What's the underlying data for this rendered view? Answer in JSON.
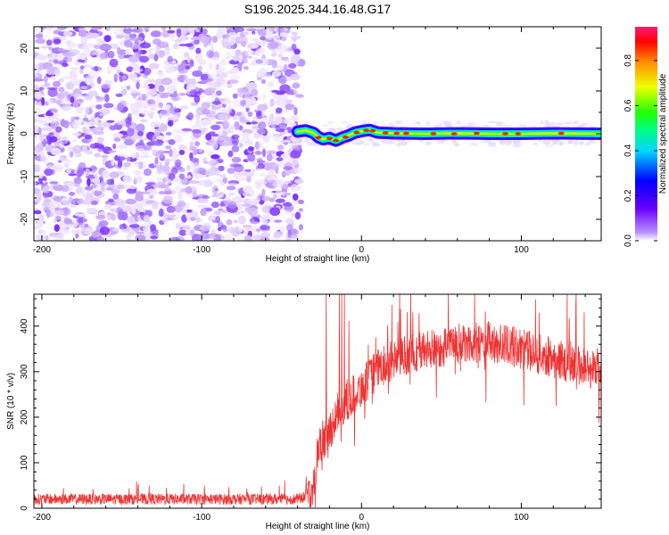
{
  "title": "S196.2025.344.16.48.G17",
  "chart_data": [
    {
      "type": "heatmap",
      "xlabel": "Height of straight line (km)",
      "ylabel": "Frequency (Hz)",
      "xlim": [
        -205,
        150
      ],
      "ylim": [
        -25,
        25
      ],
      "xticks": [
        -200,
        -100,
        0,
        100
      ],
      "yticks": [
        -20,
        -10,
        0,
        10,
        20
      ],
      "noise_region": {
        "x_end": -40,
        "description_values": "scattered low-to-mid amplitude noise across all frequencies"
      },
      "signal_ridge": [
        {
          "x": -40,
          "y": 0.5
        },
        {
          "x": -35,
          "y": 0.8
        },
        {
          "x": -30,
          "y": 0.2
        },
        {
          "x": -27,
          "y": -0.8
        },
        {
          "x": -24,
          "y": -1.3
        },
        {
          "x": -20,
          "y": -1.0
        },
        {
          "x": -16,
          "y": -1.6
        },
        {
          "x": -12,
          "y": -0.9
        },
        {
          "x": -8,
          "y": -0.4
        },
        {
          "x": -4,
          "y": 0.3
        },
        {
          "x": 0,
          "y": 0.6
        },
        {
          "x": 5,
          "y": 0.9
        },
        {
          "x": 10,
          "y": 0.3
        },
        {
          "x": 20,
          "y": 0.1
        },
        {
          "x": 40,
          "y": 0.0
        },
        {
          "x": 60,
          "y": 0.1
        },
        {
          "x": 80,
          "y": 0.0
        },
        {
          "x": 100,
          "y": 0.0
        },
        {
          "x": 120,
          "y": 0.1
        },
        {
          "x": 150,
          "y": 0.0
        }
      ],
      "colorbar": {
        "label": "Normalized spectral amplitude",
        "range": [
          0,
          0.95
        ],
        "ticks": [
          0.0,
          0.2,
          0.4,
          0.6,
          0.8
        ],
        "colors": [
          "#ffffff",
          "#7f00ff",
          "#0000ff",
          "#00ffff",
          "#00ff00",
          "#ffff00",
          "#ff0000",
          "#ff1493"
        ]
      }
    },
    {
      "type": "line",
      "xlabel": "Height of straight line (km)",
      "ylabel": "SNR (10 * v/v)",
      "xlim": [
        -205,
        150
      ],
      "ylim": [
        0,
        470
      ],
      "xticks": [
        -200,
        -100,
        0,
        100
      ],
      "yticks": [
        0,
        100,
        200,
        300,
        400
      ],
      "color": "#ee3333",
      "series_trend": [
        {
          "x": -205,
          "y": 20
        },
        {
          "x": -100,
          "y": 20
        },
        {
          "x": -40,
          "y": 20
        },
        {
          "x": -32,
          "y": 28
        },
        {
          "x": -29,
          "y": 80
        },
        {
          "x": -27,
          "y": 140
        },
        {
          "x": -24,
          "y": 150
        },
        {
          "x": -20,
          "y": 170
        },
        {
          "x": -15,
          "y": 210
        },
        {
          "x": -10,
          "y": 235
        },
        {
          "x": -5,
          "y": 250
        },
        {
          "x": 0,
          "y": 265
        },
        {
          "x": 5,
          "y": 285
        },
        {
          "x": 10,
          "y": 305
        },
        {
          "x": 20,
          "y": 325
        },
        {
          "x": 30,
          "y": 340
        },
        {
          "x": 45,
          "y": 350
        },
        {
          "x": 60,
          "y": 360
        },
        {
          "x": 75,
          "y": 365
        },
        {
          "x": 90,
          "y": 360
        },
        {
          "x": 105,
          "y": 345
        },
        {
          "x": 120,
          "y": 330
        },
        {
          "x": 135,
          "y": 315
        },
        {
          "x": 150,
          "y": 300
        }
      ],
      "noise_amplitude_low": 12,
      "noise_amplitude_high": 45,
      "spike_max": 470
    }
  ]
}
